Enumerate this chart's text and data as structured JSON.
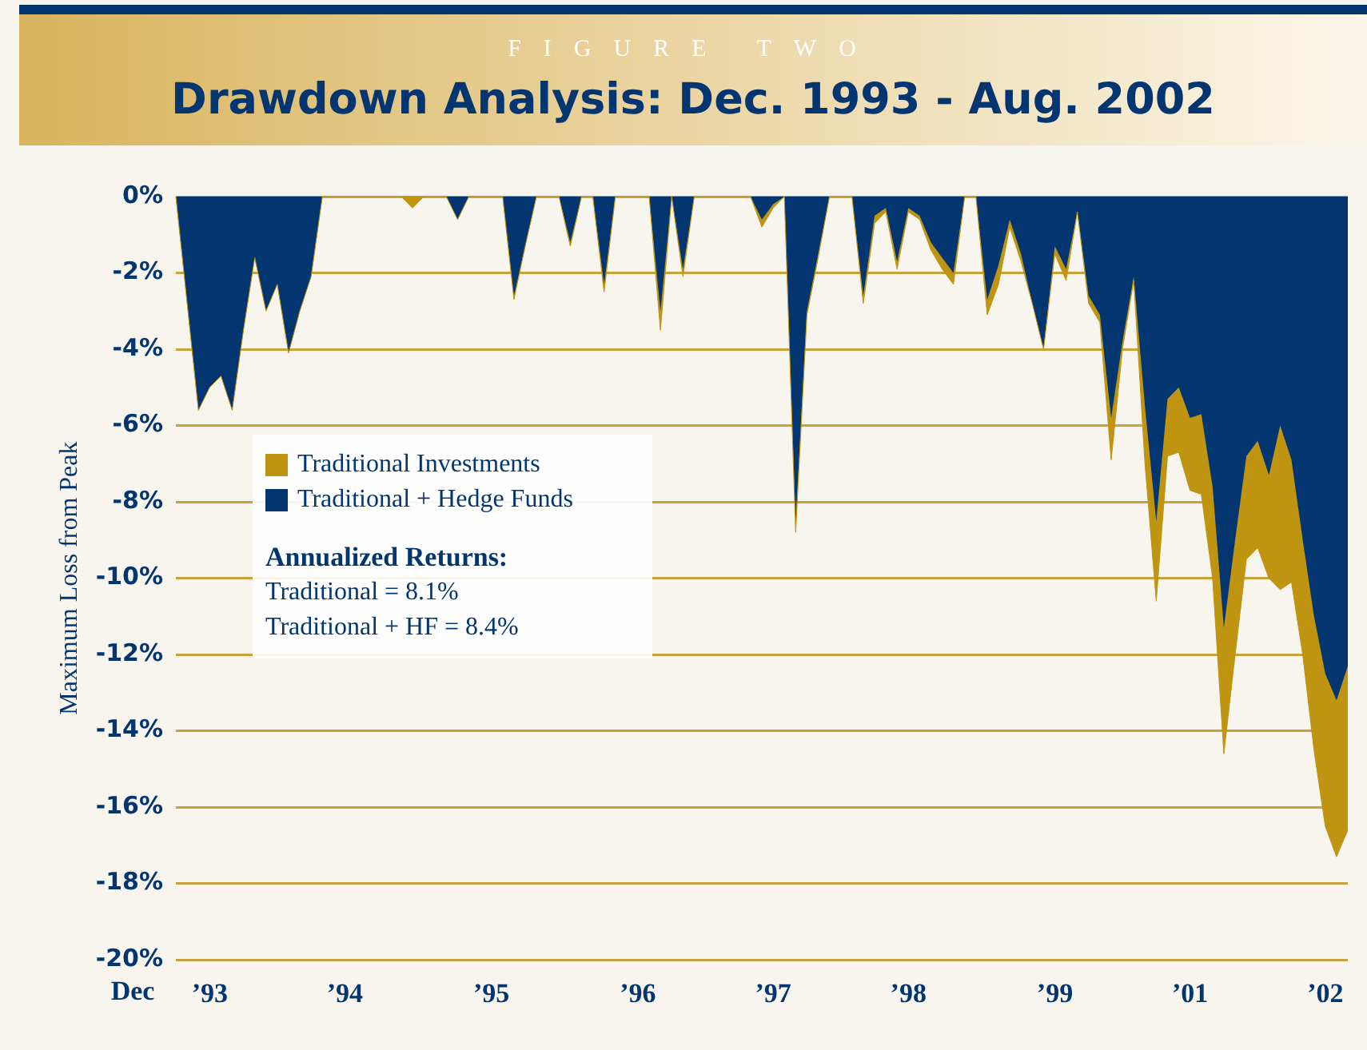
{
  "chart_data": {
    "type": "area",
    "subtitle": "FIGURE TWO",
    "title": "Drawdown Analysis: Dec. 1993 - Aug. 2002",
    "xlabel": "Dec",
    "ylabel": "Maximum Loss from Peak",
    "categories": [
      null,
      null,
      null,
      "’93",
      null,
      null,
      null,
      null,
      null,
      null,
      null,
      null,
      null,
      null,
      null,
      "’94",
      null,
      null,
      null,
      null,
      null,
      null,
      null,
      null,
      null,
      null,
      null,
      null,
      "’95",
      null,
      null,
      null,
      null,
      null,
      null,
      null,
      null,
      null,
      null,
      null,
      null,
      "’96",
      null,
      null,
      null,
      null,
      null,
      null,
      null,
      null,
      null,
      null,
      null,
      "’97",
      null,
      null,
      null,
      null,
      null,
      null,
      null,
      null,
      null,
      null,
      null,
      "’98",
      null,
      null,
      null,
      null,
      null,
      null,
      null,
      null,
      null,
      null,
      null,
      null,
      "’99",
      null,
      null,
      null,
      null,
      null,
      null,
      null,
      null,
      null,
      null,
      null,
      "’01",
      null,
      null,
      null,
      null,
      null,
      null,
      null,
      null,
      null,
      null,
      null,
      "’02",
      null,
      null
    ],
    "series": [
      {
        "name": "Traditional Investments",
        "color": "#bf9410",
        "values": [
          0,
          -2.8,
          -5.6,
          -5.0,
          -4.7,
          -5.6,
          -3.5,
          -1.6,
          -3.0,
          -2.3,
          -4.1,
          -3.0,
          -2.1,
          0,
          0,
          0,
          0,
          0,
          0,
          0,
          0,
          -0.3,
          0,
          0,
          0,
          -0.6,
          0,
          0,
          0,
          0,
          -2.7,
          -1.3,
          0,
          0,
          0,
          -1.3,
          0,
          0,
          -2.5,
          0,
          0,
          0,
          0,
          -3.5,
          0,
          -2.1,
          0,
          0,
          0,
          0,
          0,
          0,
          -0.8,
          -0.3,
          0,
          -8.8,
          -3.1,
          -1.6,
          0,
          0,
          0,
          -2.8,
          -0.7,
          -0.4,
          -1.9,
          -0.4,
          -0.6,
          -1.4,
          -1.9,
          -2.3,
          0,
          0,
          -3.1,
          -2.3,
          -0.8,
          -1.7,
          -2.8,
          -4.0,
          -1.5,
          -2.2,
          -0.4,
          -2.8,
          -3.3,
          -6.9,
          -4.0,
          -2.2,
          -7.0,
          -10.6,
          -6.8,
          -6.7,
          -7.7,
          -7.8,
          -10.0,
          -14.6,
          -12.0,
          -9.5,
          -9.2,
          -10.0,
          -10.3,
          -10.1,
          -12.0,
          -14.5,
          -16.5,
          -17.3,
          -16.6
        ]
      },
      {
        "name": "Traditional + Hedge Funds",
        "color": "#033671",
        "values": [
          0,
          -2.8,
          -5.6,
          -5.0,
          -4.7,
          -5.6,
          -3.5,
          -1.6,
          -3.0,
          -2.3,
          -4.1,
          -3.0,
          -2.1,
          0,
          0,
          0,
          0,
          0,
          0,
          0,
          0,
          0,
          0,
          0,
          0,
          -0.6,
          0,
          0,
          0,
          0,
          -2.6,
          -1.3,
          0,
          0,
          0,
          -1.2,
          0,
          0,
          -2.3,
          0,
          0,
          0,
          0,
          -3.0,
          0,
          -1.9,
          0,
          0,
          0,
          0,
          0,
          0,
          -0.6,
          -0.2,
          0,
          -8.5,
          -3.0,
          -1.5,
          0,
          0,
          0,
          -2.6,
          -0.5,
          -0.3,
          -1.7,
          -0.3,
          -0.5,
          -1.2,
          -1.6,
          -2.0,
          0,
          0,
          -2.7,
          -1.8,
          -0.6,
          -1.5,
          -2.8,
          -4.0,
          -1.3,
          -1.9,
          -0.4,
          -2.6,
          -3.1,
          -5.8,
          -3.8,
          -2.1,
          -5.5,
          -8.5,
          -5.3,
          -5.0,
          -5.8,
          -5.7,
          -7.6,
          -11.3,
          -9.0,
          -6.8,
          -6.4,
          -7.3,
          -6.0,
          -6.9,
          -9.0,
          -11.0,
          -12.5,
          -13.2,
          -12.3
        ]
      }
    ],
    "ylim": [
      -20,
      0
    ],
    "yticks": [
      {
        "value": 0,
        "label": "0%"
      },
      {
        "value": -2,
        "label": "-2%"
      },
      {
        "value": -4,
        "label": "-4%"
      },
      {
        "value": -6,
        "label": "-6%"
      },
      {
        "value": -8,
        "label": "-8%"
      },
      {
        "value": -10,
        "label": "-10%"
      },
      {
        "value": -12,
        "label": "-12%"
      },
      {
        "value": -14,
        "label": "-14%"
      },
      {
        "value": -16,
        "label": "-16%"
      },
      {
        "value": -18,
        "label": "-18%"
      },
      {
        "value": -20,
        "label": "-20%"
      }
    ],
    "grid": "y",
    "legend": "left",
    "marker": "none",
    "annotations": [
      "Annualized Returns:",
      "Traditional = 8.1%",
      "Traditional + HF = 8.4%"
    ]
  }
}
